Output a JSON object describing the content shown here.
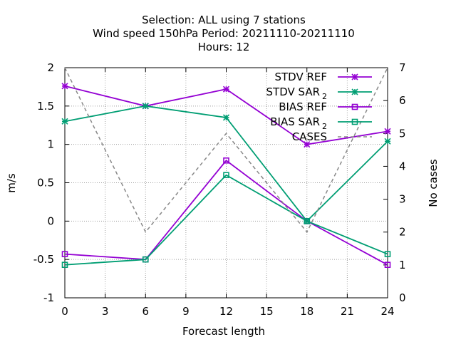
{
  "chart_data": {
    "type": "line",
    "title": {
      "line1": "Selection: ALL using     7 stations",
      "line2": "Wind speed 150hPa   Period: 20211110-20211110",
      "line3": "Hours:  12"
    },
    "xlabel": "Forecast length",
    "ylabel": "m/s",
    "y2label": "No cases",
    "xlim": [
      0,
      24
    ],
    "ylim": [
      -1,
      2
    ],
    "y2lim": [
      0,
      7
    ],
    "x_ticks": [
      "0",
      "3",
      "6",
      "9",
      "12",
      "15",
      "18",
      "21",
      "24"
    ],
    "y_ticks": [
      "-1",
      "-0.5",
      "0",
      "0.5",
      "1",
      "1.5",
      "2"
    ],
    "y2_ticks": [
      "0",
      "1",
      "2",
      "3",
      "4",
      "5",
      "6",
      "7"
    ],
    "grid": true,
    "legend_position": "top-right",
    "x": [
      0,
      6,
      12,
      18,
      24
    ],
    "series": [
      {
        "name": "STDV REF",
        "name_main": "STDV REF",
        "name_sub": "",
        "axis": "y",
        "marker": "star",
        "dash": "solid",
        "color": "#9400d3",
        "values": [
          1.76,
          1.5,
          1.72,
          1.0,
          1.17
        ]
      },
      {
        "name": "STDV SAR 2",
        "name_main": "STDV SAR",
        "name_sub": "2",
        "axis": "y",
        "marker": "star",
        "dash": "solid",
        "color": "#009e73",
        "values": [
          1.3,
          1.5,
          1.35,
          0.0,
          1.04
        ]
      },
      {
        "name": "BIAS REF",
        "name_main": "BIAS REF",
        "name_sub": "",
        "axis": "y",
        "marker": "square",
        "dash": "solid",
        "color": "#9400d3",
        "values": [
          -0.43,
          -0.5,
          0.79,
          0.0,
          -0.57
        ]
      },
      {
        "name": "BIAS SAR 2",
        "name_main": "BIAS SAR",
        "name_sub": "2",
        "axis": "y",
        "marker": "square",
        "dash": "solid",
        "color": "#009e73",
        "values": [
          -0.57,
          -0.5,
          0.6,
          0.0,
          -0.43
        ]
      },
      {
        "name": "CASES",
        "name_main": "CASES",
        "name_sub": "",
        "axis": "y2",
        "marker": "none",
        "dash": "dashed",
        "color": "#888888",
        "values": [
          7,
          2,
          5,
          2,
          7
        ]
      }
    ]
  }
}
